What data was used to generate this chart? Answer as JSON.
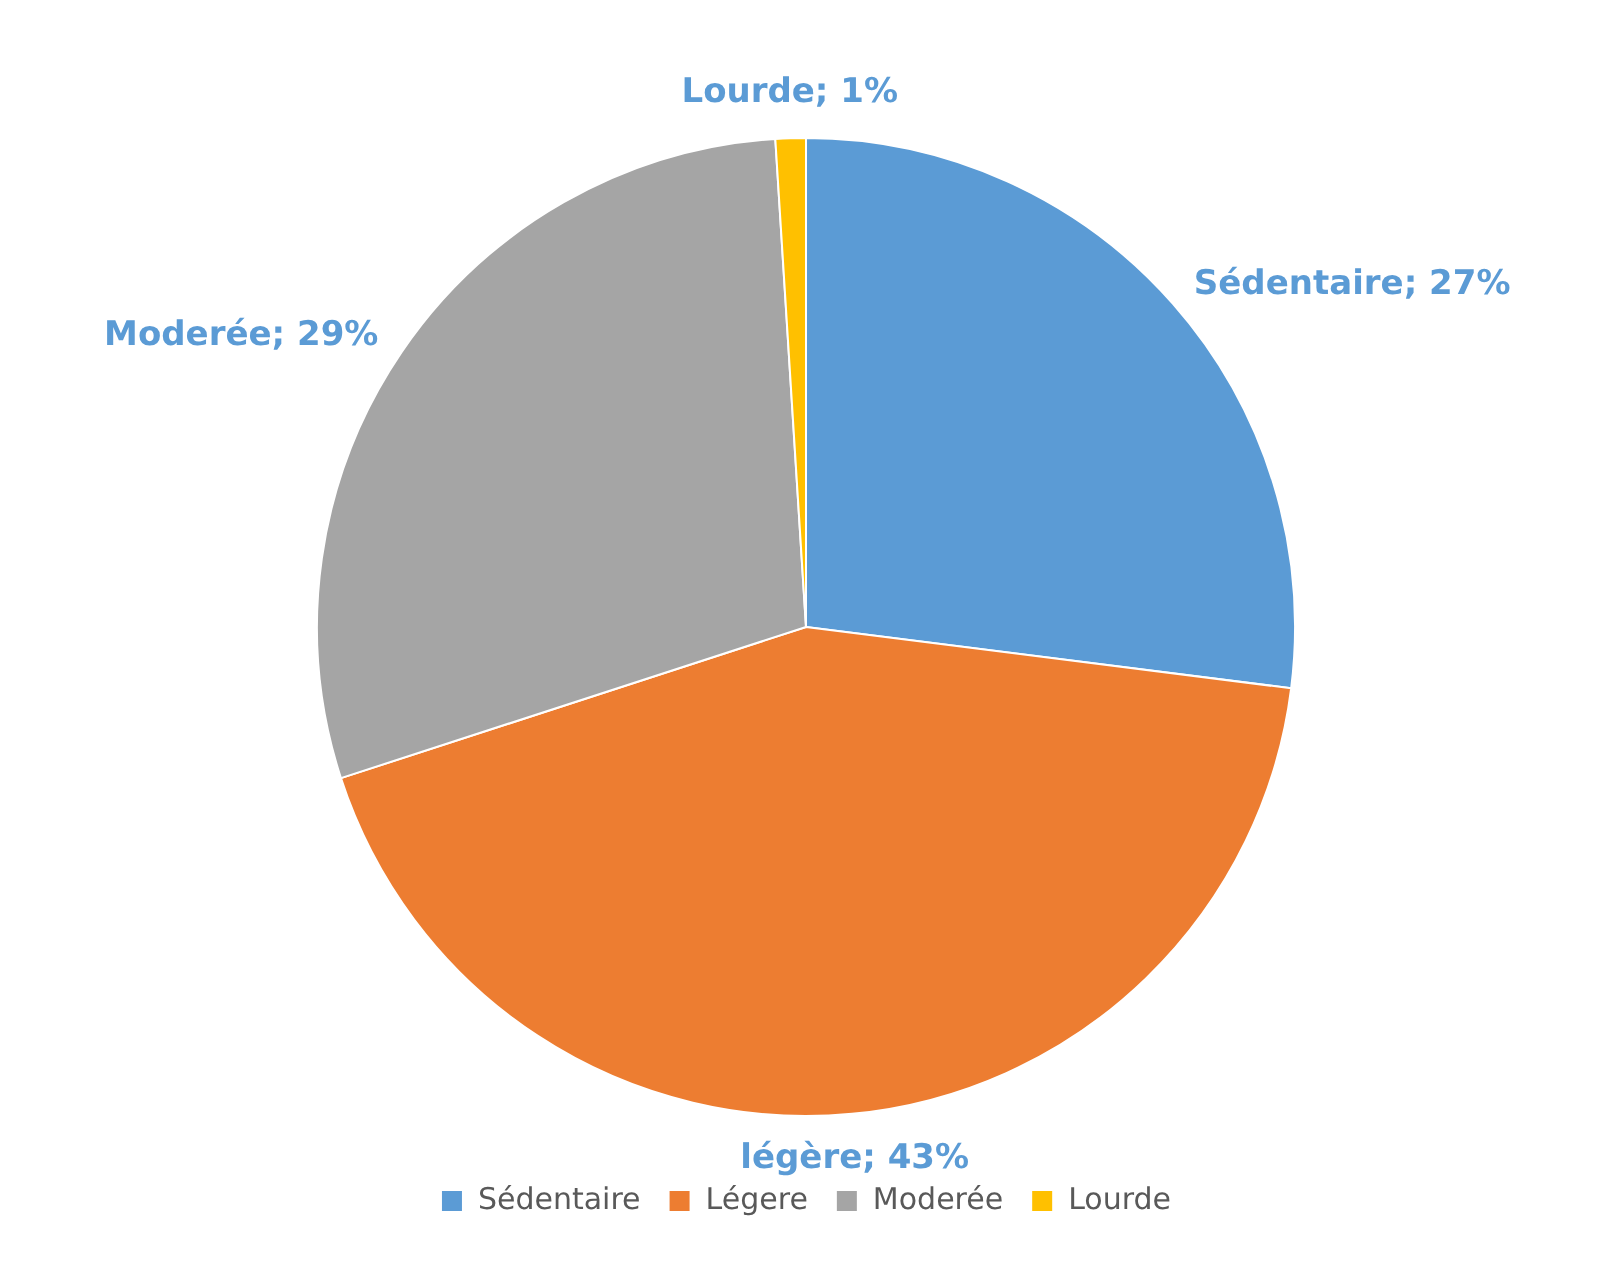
{
  "chart_data": {
    "type": "pie",
    "categories": [
      "Sédentaire",
      "Légere",
      "Moderée",
      "Lourde"
    ],
    "values": [
      27,
      43,
      29,
      1
    ],
    "colors": [
      "#5b9bd5",
      "#ed7d31",
      "#a5a5a5",
      "#ffc000"
    ],
    "value_labels": [
      "Sédentaire; 27%",
      "légère; 43%",
      "Moderée; 29%",
      "Lourde; 1%"
    ],
    "legend": "bottom"
  }
}
